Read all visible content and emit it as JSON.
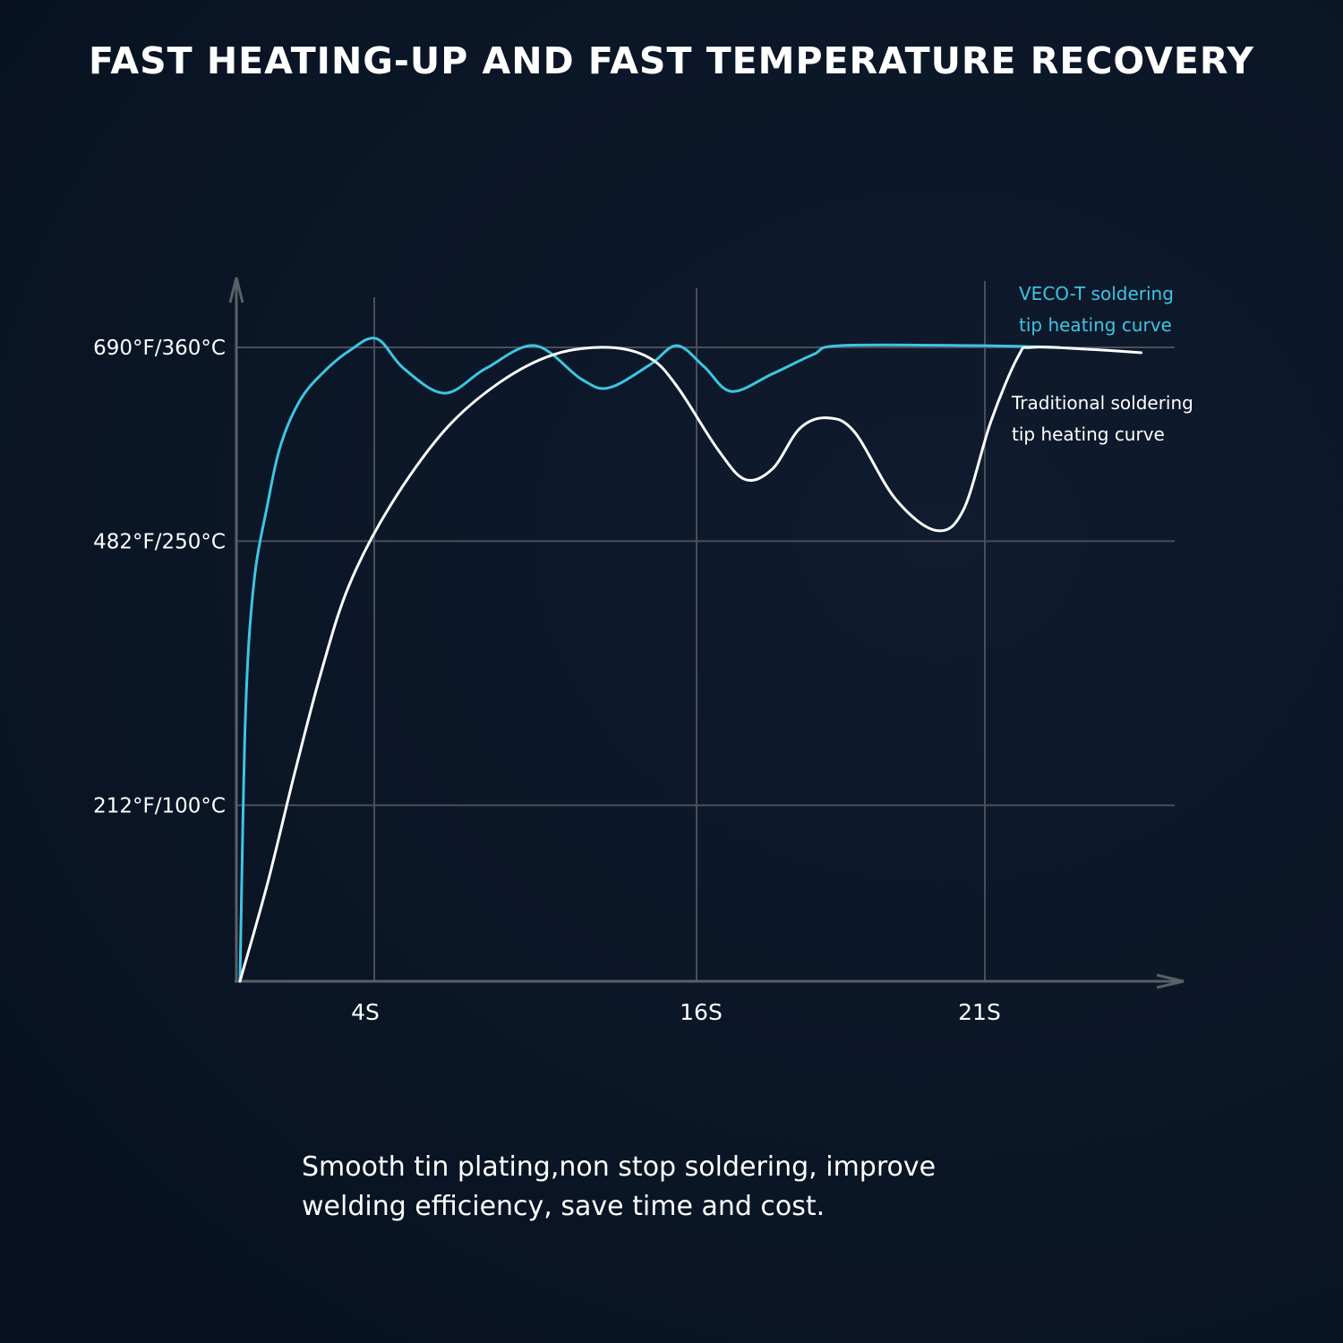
{
  "title": "FAST HEATING-UP AND FAST TEMPERATURE RECOVERY",
  "caption": {
    "line1": "Smooth tin plating,non stop soldering, improve",
    "line2": "welding efficiency, save time and cost."
  },
  "colors": {
    "veco": "#3cc6e2",
    "traditional": "#ffffff",
    "grid": "#4a4f58",
    "background": "#0b1627"
  },
  "chart_data": {
    "type": "line",
    "title": "FAST HEATING-UP AND FAST TEMPERATURE RECOVERY",
    "xlabel": "",
    "ylabel": "",
    "x_ticks": [
      {
        "label": "4S",
        "value": 4
      },
      {
        "label": "16S",
        "value": 16
      },
      {
        "label": "21S",
        "value": 21
      }
    ],
    "y_ticks": [
      {
        "label": "212°F/100°C",
        "value": 100
      },
      {
        "label": "482°F/250°C",
        "value": 250
      },
      {
        "label": "690°F/360°C",
        "value": 360
      }
    ],
    "grid": true,
    "legend_placement": "right, next to each curve",
    "series": [
      {
        "name": "VECO-T soldering tip heating curve",
        "name_lines": [
          "VECO-T soldering",
          "tip heating curve"
        ],
        "color": "#3cc6e2",
        "points": [
          [
            0,
            0
          ],
          [
            0.2,
            150
          ],
          [
            0.5,
            225
          ],
          [
            1.0,
            270
          ],
          [
            1.5,
            305
          ],
          [
            2.2,
            330
          ],
          [
            3.0,
            345
          ],
          [
            4.0,
            358
          ],
          [
            5.0,
            365
          ],
          [
            6.0,
            348
          ],
          [
            7.5,
            334
          ],
          [
            9.0,
            348
          ],
          [
            10.8,
            361
          ],
          [
            12.5,
            342
          ],
          [
            13.5,
            337
          ],
          [
            15.0,
            350
          ],
          [
            16.0,
            361
          ],
          [
            17.0,
            349
          ],
          [
            18.0,
            335
          ],
          [
            19.5,
            345
          ],
          [
            21.0,
            356
          ],
          [
            22.0,
            361
          ],
          [
            27.0,
            361
          ],
          [
            30.0,
            360
          ]
        ]
      },
      {
        "name": "Traditional soldering tip heating curve",
        "name_lines": [
          "Traditional soldering",
          "tip heating curve"
        ],
        "color": "#ffffff",
        "points": [
          [
            0,
            0
          ],
          [
            1.0,
            55
          ],
          [
            2.0,
            118
          ],
          [
            3.0,
            177
          ],
          [
            4.0,
            225
          ],
          [
            5.5,
            270
          ],
          [
            7.5,
            313
          ],
          [
            9.5,
            340
          ],
          [
            11.5,
            356
          ],
          [
            13.5,
            360
          ],
          [
            15.0,
            354
          ],
          [
            16.0,
            338
          ],
          [
            17.5,
            302
          ],
          [
            18.5,
            285
          ],
          [
            19.5,
            291
          ],
          [
            20.5,
            314
          ],
          [
            21.5,
            320
          ],
          [
            22.5,
            312
          ],
          [
            24.0,
            274
          ],
          [
            25.5,
            256
          ],
          [
            26.5,
            268
          ],
          [
            27.5,
            318
          ],
          [
            28.5,
            355
          ],
          [
            29.0,
            360
          ],
          [
            31.0,
            359
          ],
          [
            33.0,
            357
          ]
        ]
      }
    ]
  }
}
